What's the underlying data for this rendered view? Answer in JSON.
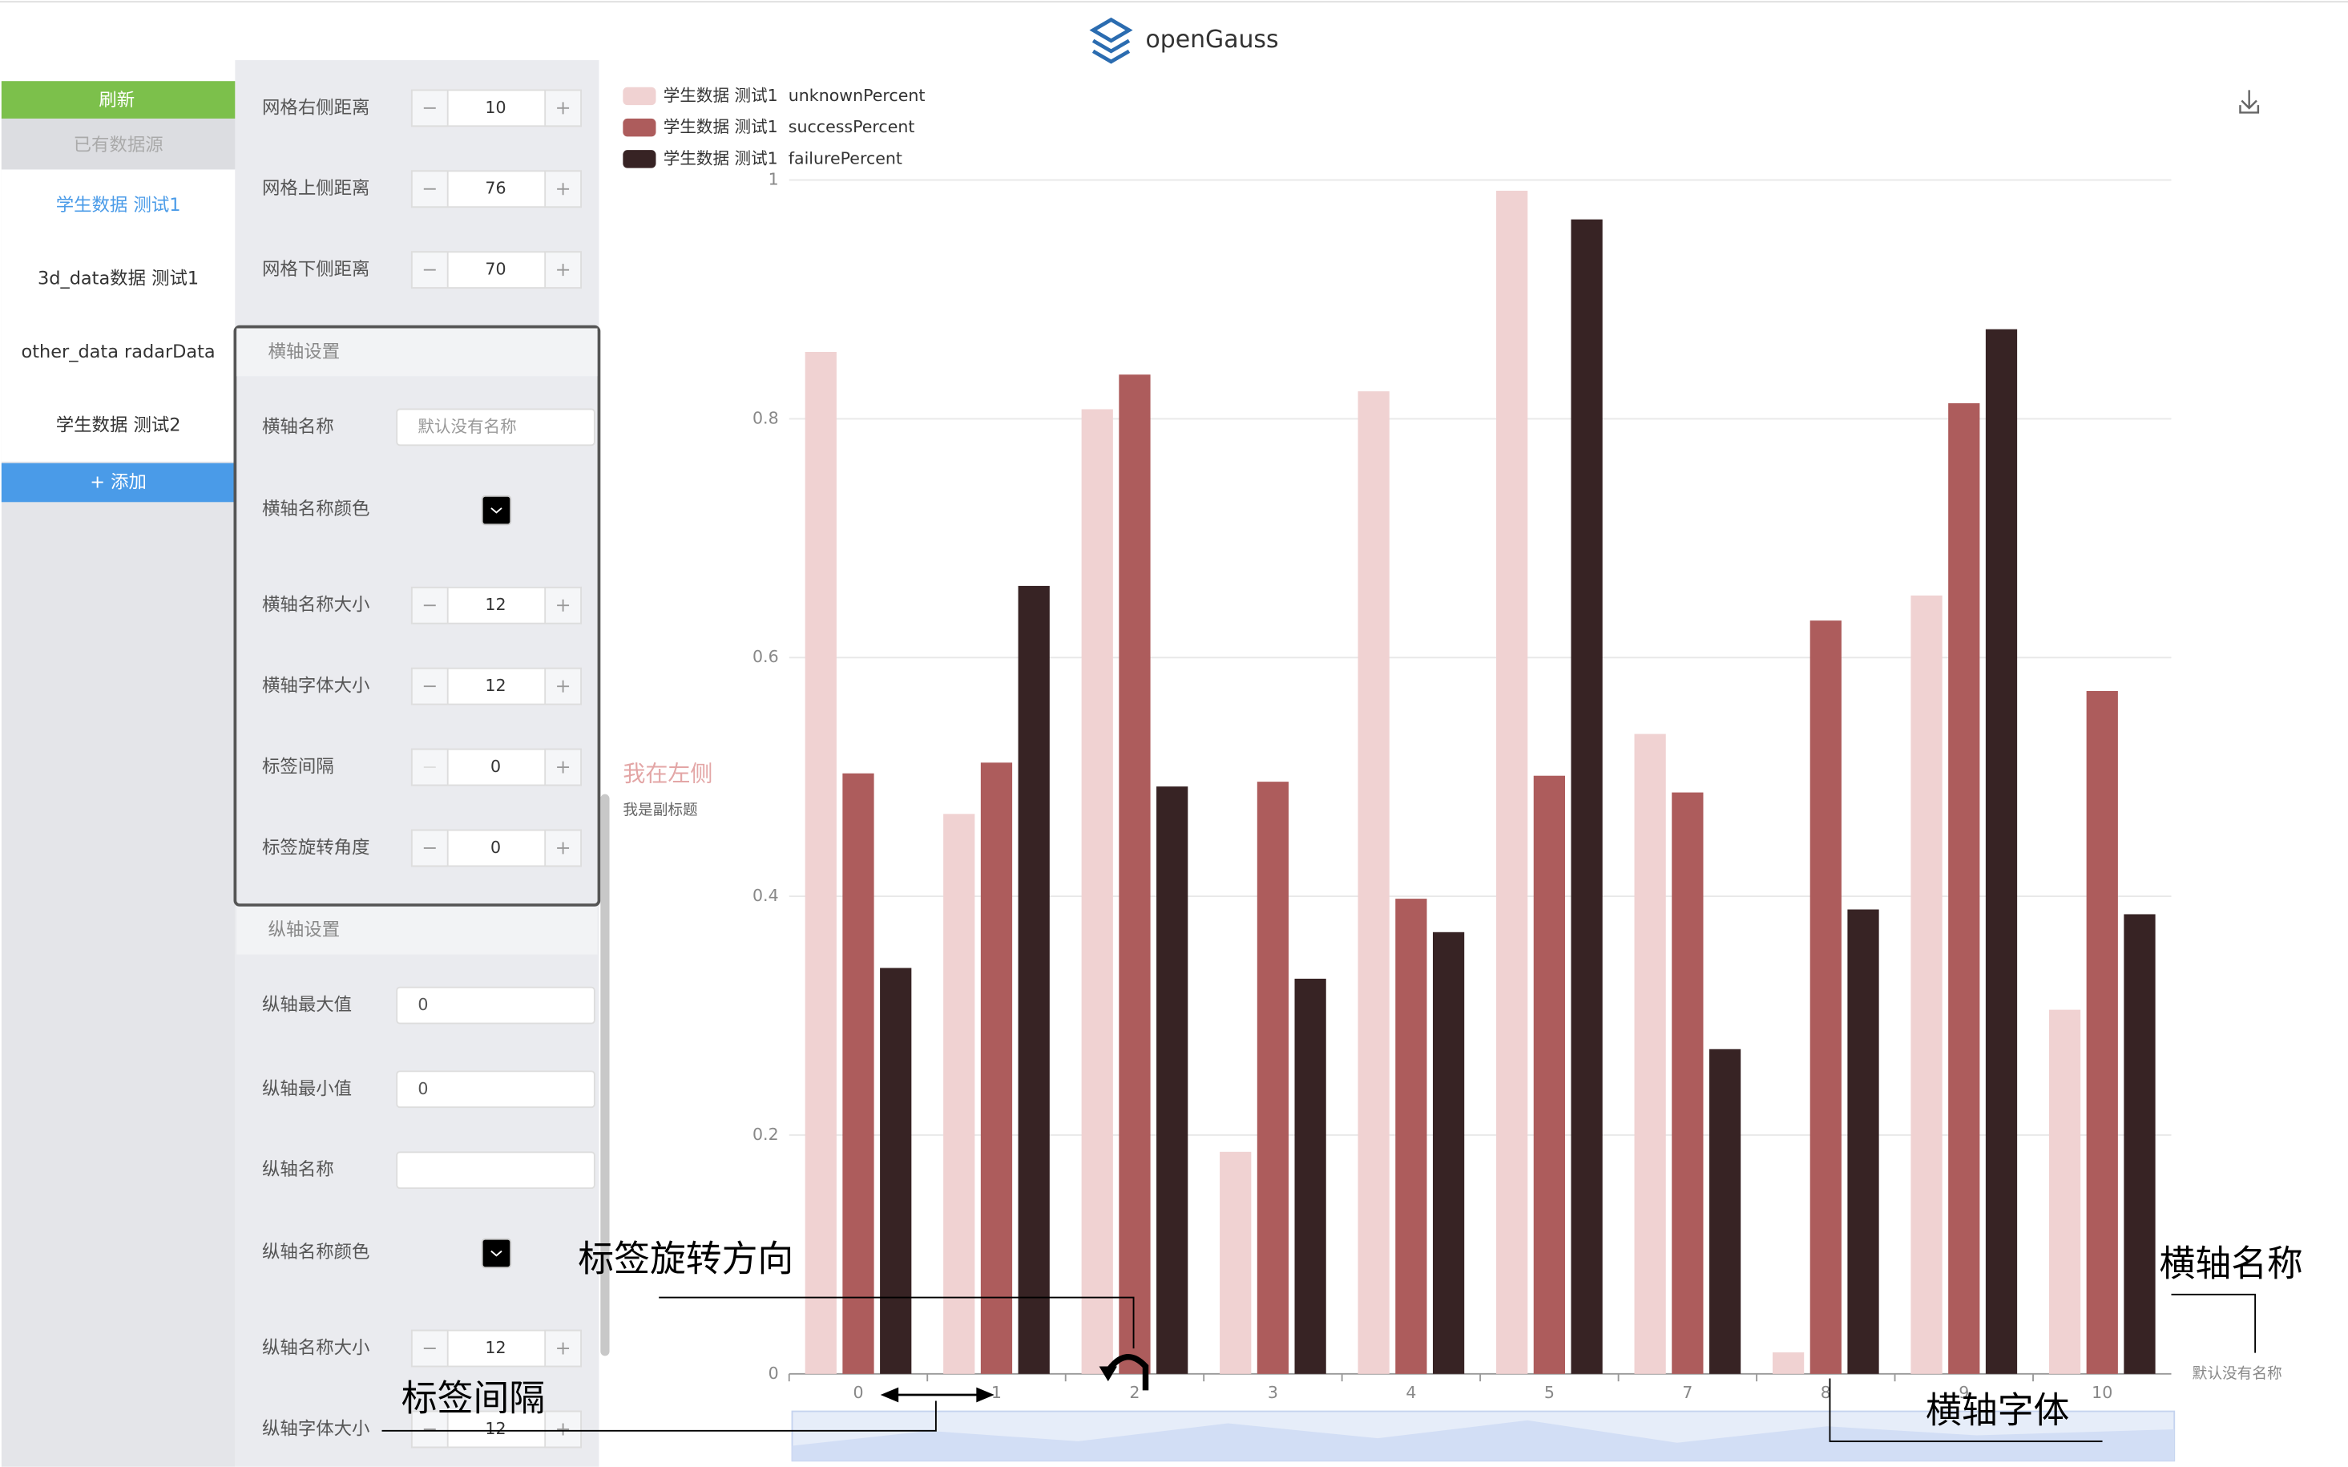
{
  "header": {
    "brand": "openGauss"
  },
  "sidebar": {
    "refresh": "刷新",
    "section": "已有数据源",
    "items": [
      "学生数据 测试1",
      "3d_data数据 测试1",
      "other_data radarData",
      "学生数据 测试2"
    ],
    "add": "+ 添加"
  },
  "grid_settings": [
    {
      "label": "网格右侧距离",
      "value": 10
    },
    {
      "label": "网格上侧距离",
      "value": 76
    },
    {
      "label": "网格下侧距离",
      "value": 70
    }
  ],
  "x_axis_settings": {
    "title": "横轴设置",
    "rows": [
      {
        "label": "横轴名称",
        "value": "默认没有名称"
      },
      {
        "label": "横轴名称颜色"
      },
      {
        "label": "横轴名称大小",
        "value": 12
      },
      {
        "label": "横轴字体大小",
        "value": 12
      },
      {
        "label": "标签间隔",
        "value": 0
      },
      {
        "label": "标签旋转角度",
        "value": 0
      }
    ]
  },
  "y_axis_settings": {
    "title": "纵轴设置",
    "rows": [
      {
        "label": "纵轴最大值",
        "value": 0
      },
      {
        "label": "纵轴最小值",
        "value": 0
      },
      {
        "label": "纵轴名称"
      },
      {
        "label": "纵轴名称颜色"
      },
      {
        "label": "纵轴名称大小",
        "value": 12
      },
      {
        "label": "纵轴字体大小",
        "value": 12
      }
    ]
  },
  "chart_data": {
    "type": "bar",
    "title": "我在左侧",
    "subtitle": "我是副标题",
    "x_label": "默认没有名称",
    "categories": [
      "0",
      "1",
      "2",
      "3",
      "4",
      "5",
      "7",
      "8",
      "9",
      "10"
    ],
    "series": [
      {
        "name": "学生数据 测试1  unknownPercent",
        "color": "#f0d2d2",
        "values": [
          0.856,
          0.469,
          0.808,
          0.186,
          0.823,
          0.991,
          0.536,
          0.018,
          0.652,
          0.305
        ]
      },
      {
        "name": "学生数据 测试1  successPercent",
        "color": "#ad5c5c",
        "values": [
          0.503,
          0.512,
          0.837,
          0.496,
          0.398,
          0.501,
          0.487,
          0.631,
          0.813,
          0.572
        ]
      },
      {
        "name": "学生数据 测试1  failurePercent",
        "color": "#372324",
        "values": [
          0.34,
          0.66,
          0.492,
          0.331,
          0.37,
          0.967,
          0.272,
          0.389,
          0.875,
          0.385
        ]
      }
    ],
    "ylim": [
      0,
      1
    ],
    "yticks": [
      0,
      0.2,
      0.4,
      0.6,
      0.8,
      1
    ],
    "grid": true
  },
  "annotations": [
    "标签旋转方向",
    "横轴名称",
    "标签间隔",
    "横轴字体"
  ]
}
